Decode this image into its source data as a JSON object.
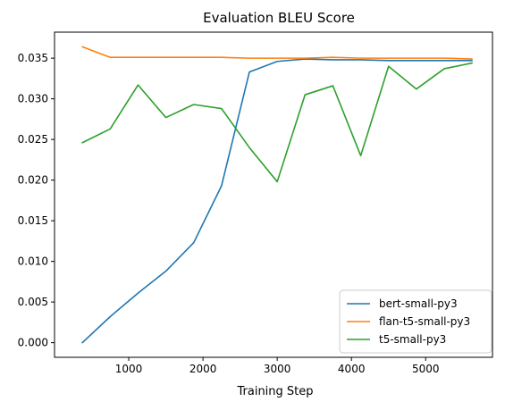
{
  "chart_data": {
    "type": "line",
    "title": "Evaluation BLEU Score",
    "xlabel": "Training Step",
    "ylabel": "",
    "xlim": [
      0,
      5900
    ],
    "ylim": [
      -0.0018,
      0.0382
    ],
    "xticks": [
      1000,
      2000,
      3000,
      4000,
      5000
    ],
    "yticks": [
      0.0,
      0.005,
      0.01,
      0.015,
      0.02,
      0.025,
      0.03,
      0.035
    ],
    "ytick_labels": [
      "0.000",
      "0.005",
      "0.010",
      "0.015",
      "0.020",
      "0.025",
      "0.030",
      "0.035"
    ],
    "xtick_labels": [
      "1000",
      "2000",
      "3000",
      "4000",
      "5000"
    ],
    "grid": false,
    "legend_position": "lower-right",
    "series": [
      {
        "name": "bert-small-py3",
        "color": "#1f77b4",
        "x": [
          375,
          750,
          1125,
          1500,
          1875,
          2250,
          2625,
          3000,
          3375,
          3750,
          4125,
          4500,
          4875,
          5250,
          5625
        ],
        "y": [
          0.0,
          0.0032,
          0.0061,
          0.0088,
          0.0123,
          0.0193,
          0.0333,
          0.0346,
          0.0349,
          0.0348,
          0.0348,
          0.0347,
          0.0347,
          0.0347,
          0.0347
        ]
      },
      {
        "name": "flan-t5-small-py3",
        "color": "#ff7f0e",
        "x": [
          375,
          750,
          1125,
          1500,
          1875,
          2250,
          2625,
          3000,
          3375,
          3750,
          4125,
          4500,
          4875,
          5250,
          5625
        ],
        "y": [
          0.0364,
          0.0351,
          0.0351,
          0.0351,
          0.0351,
          0.0351,
          0.035,
          0.035,
          0.035,
          0.0351,
          0.035,
          0.035,
          0.035,
          0.035,
          0.0349
        ]
      },
      {
        "name": "t5-small-py3",
        "color": "#2ca02c",
        "x": [
          375,
          750,
          1125,
          1500,
          1875,
          2250,
          2625,
          3000,
          3375,
          3750,
          4125,
          4500,
          4875,
          5250,
          5625
        ],
        "y": [
          0.0246,
          0.0263,
          0.0317,
          0.0277,
          0.0293,
          0.0288,
          0.024,
          0.0198,
          0.0305,
          0.0316,
          0.023,
          0.034,
          0.0312,
          0.0337,
          0.0344
        ]
      }
    ]
  }
}
